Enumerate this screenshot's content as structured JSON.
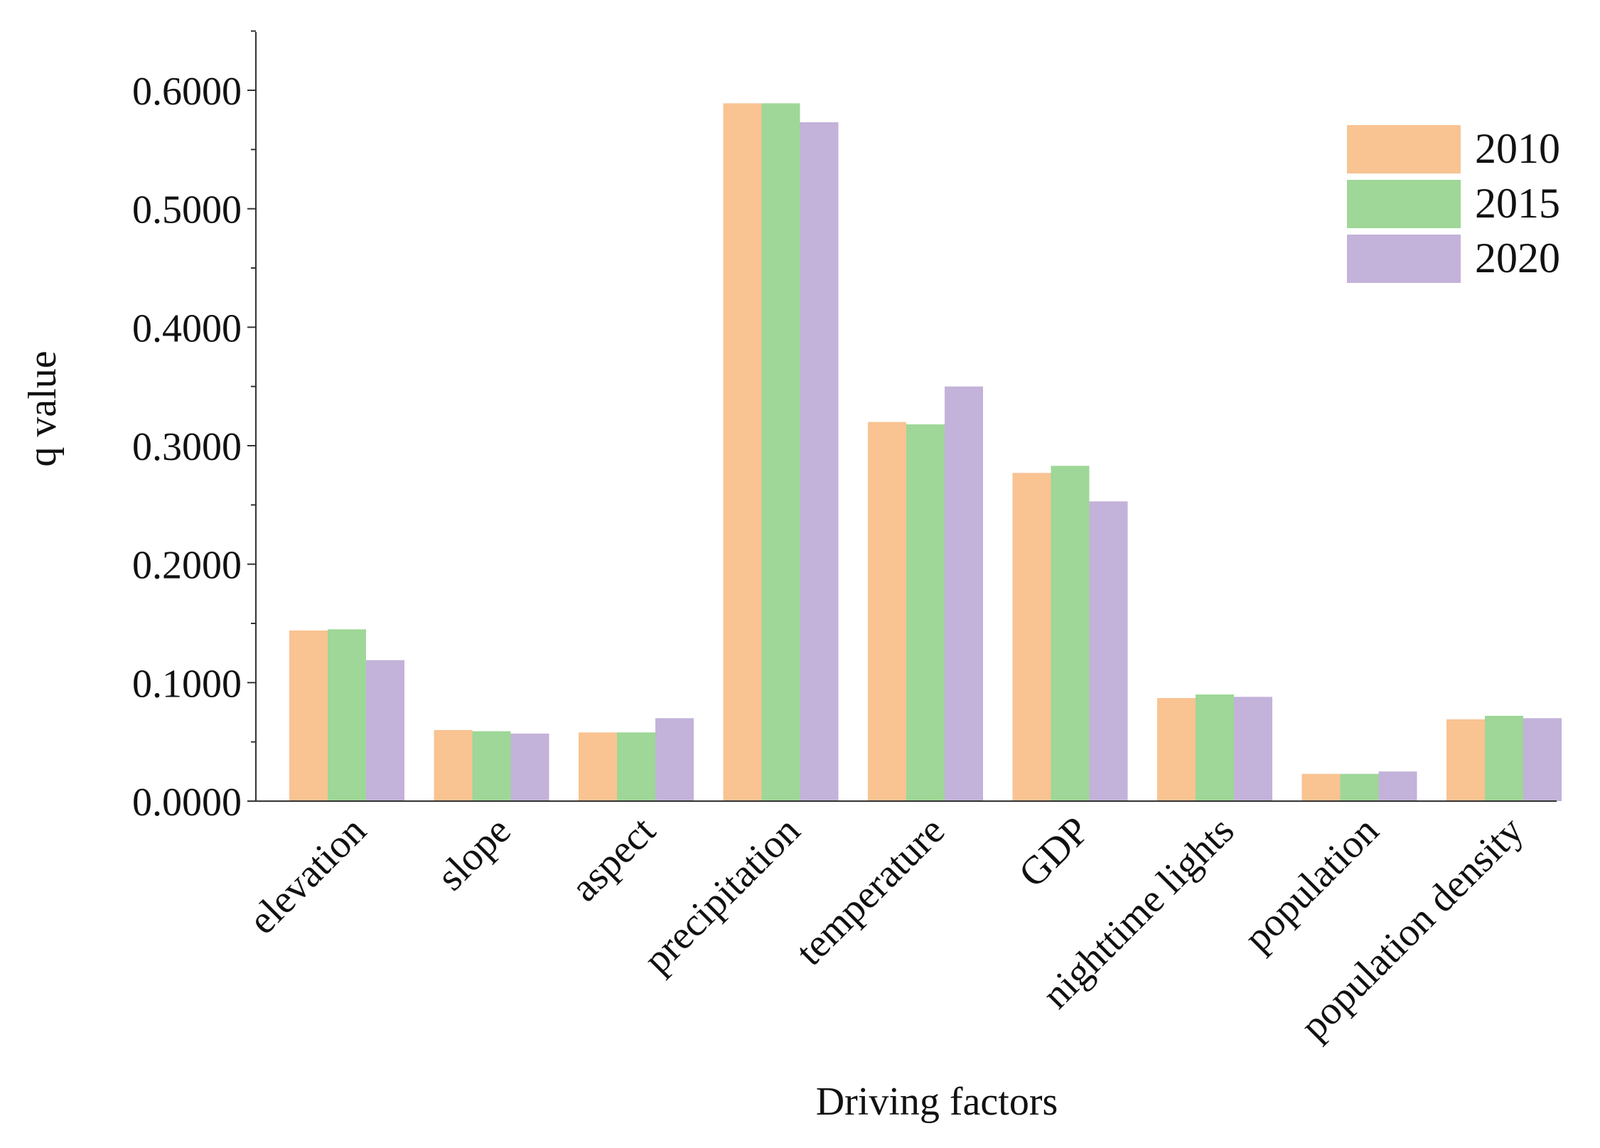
{
  "chart_data": {
    "type": "bar",
    "title": "",
    "xlabel": "Driving factors",
    "ylabel": "q value",
    "ylim": [
      0,
      0.65
    ],
    "yticks": [
      0.0,
      0.1,
      0.2,
      0.3,
      0.4,
      0.5,
      0.6
    ],
    "ytick_labels": [
      "0.0000",
      "0.1000",
      "0.2000",
      "0.3000",
      "0.4000",
      "0.5000",
      "0.6000"
    ],
    "grid": false,
    "legend_position": "top-right",
    "categories": [
      "elevation",
      "slope",
      "aspect",
      "precipitation",
      "temperature",
      "GDP",
      "nighttime lights",
      "population",
      "population density"
    ],
    "series": [
      {
        "name": "2010",
        "color": "#F9C392",
        "values": [
          0.144,
          0.06,
          0.058,
          0.589,
          0.32,
          0.277,
          0.087,
          0.023,
          0.069
        ]
      },
      {
        "name": "2015",
        "color": "#9ED797",
        "values": [
          0.145,
          0.059,
          0.058,
          0.589,
          0.318,
          0.283,
          0.09,
          0.023,
          0.072
        ]
      },
      {
        "name": "2020",
        "color": "#C3B2D9",
        "values": [
          0.119,
          0.057,
          0.07,
          0.573,
          0.35,
          0.253,
          0.088,
          0.025,
          0.07
        ]
      }
    ]
  }
}
